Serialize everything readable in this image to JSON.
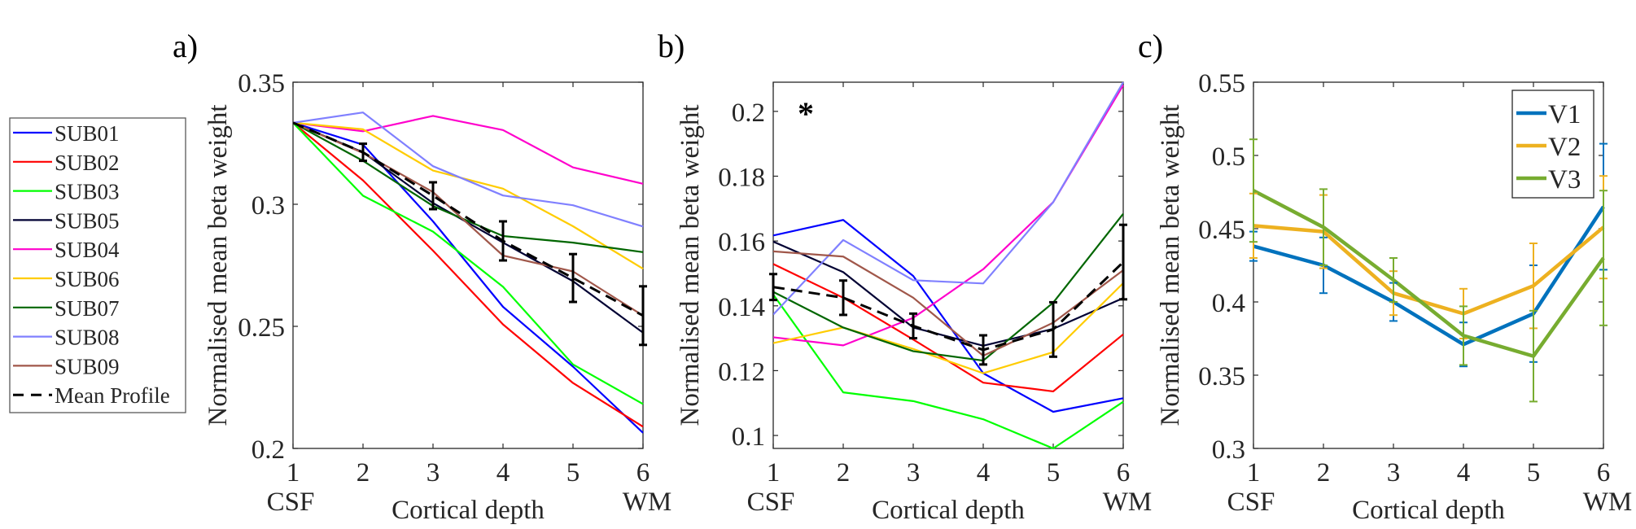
{
  "chart_data": [
    {
      "type": "line",
      "panel_label": "a)",
      "xlabel": "Cortical depth",
      "ylabel": "Normalised mean beta weight",
      "x": [
        1,
        2,
        3,
        4,
        5,
        6
      ],
      "xtick_labels": [
        "1",
        "2",
        "3",
        "4",
        "5",
        "6"
      ],
      "xend_labels": {
        "left": "CSF",
        "right": "WM"
      },
      "ylim": [
        0.2,
        0.35
      ],
      "yticks": [
        0.2,
        0.25,
        0.3,
        0.35
      ],
      "ytick_labels": [
        "0.2",
        "0.25",
        "0.3",
        "0.35"
      ],
      "grid": false,
      "legend_position": "outside-left",
      "series": [
        {
          "name": "SUB01",
          "color": "#0000ff",
          "values": [
            0.3334,
            0.3244,
            0.293,
            0.258,
            0.2335,
            0.2064
          ]
        },
        {
          "name": "SUB02",
          "color": "#ff0000",
          "values": [
            0.3334,
            0.3098,
            0.281,
            0.2508,
            0.2268,
            0.2089
          ]
        },
        {
          "name": "SUB03",
          "color": "#00ff00",
          "values": [
            0.3334,
            0.3035,
            0.2888,
            0.2662,
            0.2344,
            0.2182
          ]
        },
        {
          "name": "SUB05",
          "color": "#000033",
          "values": [
            0.3334,
            0.3213,
            0.3005,
            0.2843,
            0.2685,
            0.2474
          ]
        },
        {
          "name": "SUB04",
          "color": "#ff00cc",
          "values": [
            0.3334,
            0.3299,
            0.3362,
            0.3304,
            0.3151,
            0.3084
          ]
        },
        {
          "name": "SUB06",
          "color": "#ffcc00",
          "values": [
            0.3334,
            0.3307,
            0.3138,
            0.3064,
            0.291,
            0.2736
          ]
        },
        {
          "name": "SUB07",
          "color": "#006600",
          "values": [
            0.3334,
            0.3178,
            0.2993,
            0.287,
            0.2843,
            0.2804
          ]
        },
        {
          "name": "SUB08",
          "color": "#8080ff",
          "values": [
            0.3334,
            0.3376,
            0.3156,
            0.3036,
            0.2996,
            0.2909
          ]
        },
        {
          "name": "SUB09",
          "color": "#a0574a",
          "values": [
            0.3334,
            0.321,
            0.305,
            0.279,
            0.2725,
            0.2544
          ]
        },
        {
          "name": "Mean Profile",
          "color": "#000000",
          "dashed": true,
          "values": [
            0.3334,
            0.3213,
            0.3035,
            0.285,
            0.2698,
            0.2544
          ],
          "errors": [
            0,
            0.0035,
            0.0055,
            0.008,
            0.0098,
            0.012
          ]
        }
      ]
    },
    {
      "type": "line",
      "panel_label": "b)",
      "annotation": "*",
      "xlabel": "Cortical depth",
      "ylabel": "Normalised mean beta weight",
      "x": [
        1,
        2,
        3,
        4,
        5,
        6
      ],
      "xtick_labels": [
        "1",
        "2",
        "3",
        "4",
        "5",
        "6"
      ],
      "xend_labels": {
        "left": "CSF",
        "right": "WM"
      },
      "ylim": [
        0.096,
        0.209
      ],
      "yticks": [
        0.1,
        0.12,
        0.14,
        0.16,
        0.18,
        0.2
      ],
      "ytick_labels": [
        "0.1",
        "0.12",
        "0.14",
        "0.16",
        "0.18",
        "0.2"
      ],
      "grid": false,
      "series": [
        {
          "name": "SUB01",
          "color": "#0000ff",
          "values": [
            0.1617,
            0.1665,
            0.1492,
            0.1192,
            0.1073,
            0.1115
          ]
        },
        {
          "name": "SUB02",
          "color": "#ff0000",
          "values": [
            0.1529,
            0.1425,
            0.1296,
            0.1163,
            0.1136,
            0.1312
          ]
        },
        {
          "name": "SUB03",
          "color": "#00ff00",
          "values": [
            0.1435,
            0.1133,
            0.1106,
            0.105,
            0.096,
            0.1104
          ]
        },
        {
          "name": "SUB05",
          "color": "#000033",
          "values": [
            0.1598,
            0.1504,
            0.1333,
            0.1277,
            0.1329,
            0.1424
          ]
        },
        {
          "name": "SUB04",
          "color": "#ff00cc",
          "values": [
            0.1303,
            0.1278,
            0.1363,
            0.1513,
            0.172,
            0.2081
          ]
        },
        {
          "name": "SUB06",
          "color": "#ffcc00",
          "values": [
            0.1285,
            0.1333,
            0.1267,
            0.1192,
            0.1257,
            0.147
          ]
        },
        {
          "name": "SUB07",
          "color": "#006600",
          "values": [
            0.1443,
            0.1333,
            0.126,
            0.1231,
            0.141,
            0.1684
          ]
        },
        {
          "name": "SUB08",
          "color": "#8080ff",
          "values": [
            0.1373,
            0.1603,
            0.1479,
            0.1469,
            0.172,
            0.209
          ]
        },
        {
          "name": "SUB09",
          "color": "#a0574a",
          "values": [
            0.1568,
            0.1552,
            0.1425,
            0.1246,
            0.1348,
            0.151
          ]
        },
        {
          "name": "Mean Profile",
          "color": "#000000",
          "dashed": true,
          "values": [
            0.1458,
            0.1425,
            0.1338,
            0.1264,
            0.1327,
            0.1535
          ],
          "errors": [
            0.004,
            0.0053,
            0.0038,
            0.0045,
            0.0084,
            0.0115
          ]
        }
      ]
    },
    {
      "type": "line",
      "panel_label": "c)",
      "xlabel": "Cortical depth",
      "ylabel": "Normalised mean beta weight",
      "x": [
        1,
        2,
        3,
        4,
        5,
        6
      ],
      "xtick_labels": [
        "1",
        "2",
        "3",
        "4",
        "5",
        "6"
      ],
      "xend_labels": {
        "left": "CSF",
        "right": "WM"
      },
      "ylim": [
        0.3,
        0.55
      ],
      "yticks": [
        0.3,
        0.35,
        0.4,
        0.45,
        0.5,
        0.55
      ],
      "ytick_labels": [
        "0.3",
        "0.35",
        "0.4",
        "0.45",
        "0.5",
        "0.55"
      ],
      "grid": false,
      "legend_position": "top-right",
      "series": [
        {
          "name": "V1",
          "color": "#0072bd",
          "values": [
            0.438,
            0.425,
            0.4,
            0.371,
            0.392,
            0.465
          ],
          "errors": [
            0.01,
            0.019,
            0.013,
            0.015,
            0.033,
            0.043
          ]
        },
        {
          "name": "V2",
          "color": "#edb120",
          "values": [
            0.452,
            0.448,
            0.406,
            0.392,
            0.411,
            0.451
          ],
          "errors": [
            0.022,
            0.025,
            0.015,
            0.017,
            0.029,
            0.035
          ]
        },
        {
          "name": "V3",
          "color": "#77ac30",
          "values": [
            0.476,
            0.451,
            0.415,
            0.377,
            0.363,
            0.43
          ],
          "errors": [
            0.035,
            0.026,
            0.015,
            0.02,
            0.031,
            0.046
          ]
        }
      ]
    }
  ]
}
